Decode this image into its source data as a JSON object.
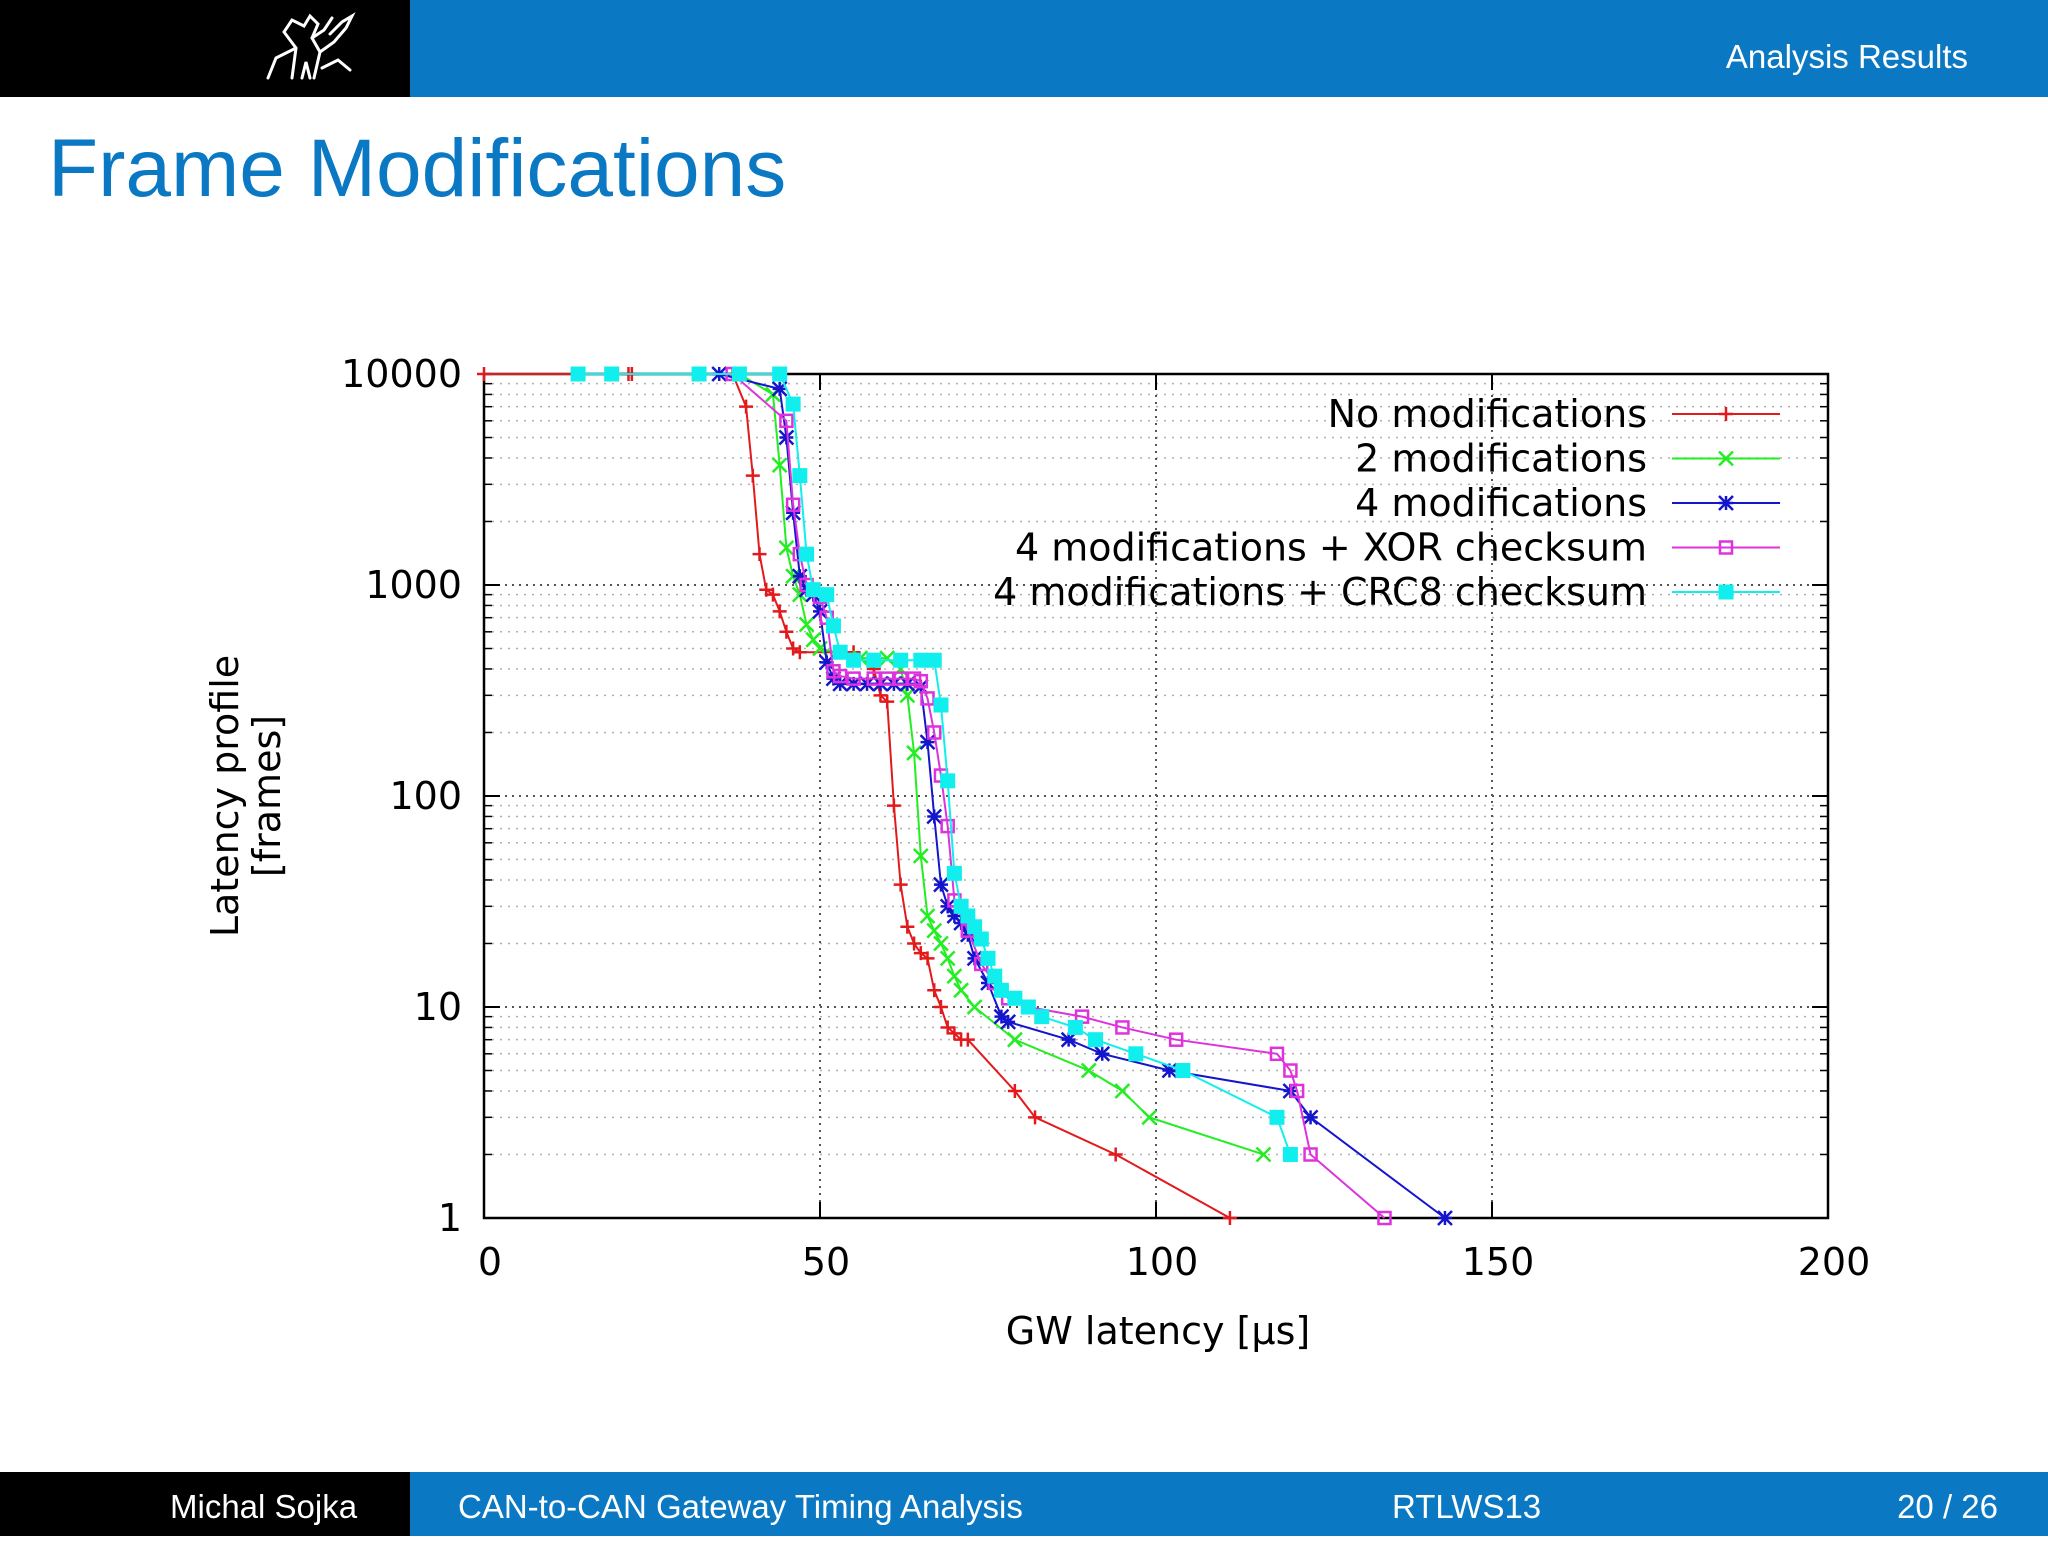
{
  "header": {
    "section": "Analysis Results"
  },
  "slide": {
    "title": "Frame Modifications"
  },
  "footer": {
    "author": "Michal Sojka",
    "talk": "CAN-to-CAN Gateway Timing Analysis",
    "conference": "RTLWS13",
    "page": "20 / 26"
  },
  "chart_data": {
    "type": "line",
    "xlabel": "GW latency [µs]",
    "ylabel": [
      "Latency profile",
      "[frames]"
    ],
    "xlim": [
      0,
      200
    ],
    "ylim": [
      1,
      10000
    ],
    "yscale": "log",
    "x_ticks": [
      0,
      50,
      100,
      150,
      200
    ],
    "y_ticks": [
      1,
      10,
      100,
      1000,
      10000
    ],
    "x_tick_labels": [
      "0",
      "50",
      "100",
      "150",
      "200"
    ],
    "y_tick_labels": [
      "1",
      "10",
      "100",
      "1000",
      "10000"
    ],
    "grid": true,
    "legend_position": "top-right",
    "series": [
      {
        "name": "No modifications",
        "color": "#e31a1c",
        "marker": "plus",
        "points": [
          [
            0,
            10000
          ],
          [
            21.5,
            10000
          ],
          [
            22,
            10000
          ],
          [
            37,
            10000
          ],
          [
            39,
            7000
          ],
          [
            40,
            3300
          ],
          [
            41,
            1400
          ],
          [
            42,
            950
          ],
          [
            43,
            900
          ],
          [
            44,
            750
          ],
          [
            45,
            600
          ],
          [
            46,
            500
          ],
          [
            47,
            480
          ],
          [
            55,
            480
          ],
          [
            58,
            400
          ],
          [
            59,
            300
          ],
          [
            60,
            280
          ],
          [
            61,
            90
          ],
          [
            62,
            38
          ],
          [
            63,
            24
          ],
          [
            64,
            20
          ],
          [
            65,
            18
          ],
          [
            66,
            17
          ],
          [
            67,
            12
          ],
          [
            68,
            10
          ],
          [
            69,
            8
          ],
          [
            70,
            7.5
          ],
          [
            71,
            7
          ],
          [
            72,
            7
          ],
          [
            79,
            4
          ],
          [
            82,
            3
          ],
          [
            94,
            2
          ],
          [
            111,
            1
          ]
        ]
      },
      {
        "name": "2 modifications",
        "color": "#22ee22",
        "marker": "x",
        "points": [
          [
            38,
            10000
          ],
          [
            43,
            8000
          ],
          [
            44,
            3700
          ],
          [
            45,
            1500
          ],
          [
            46,
            1100
          ],
          [
            47,
            900
          ],
          [
            48,
            650
          ],
          [
            49,
            550
          ],
          [
            50,
            500
          ],
          [
            56,
            450
          ],
          [
            60,
            450
          ],
          [
            62,
            400
          ],
          [
            63,
            300
          ],
          [
            64,
            160
          ],
          [
            65,
            52
          ],
          [
            66,
            27
          ],
          [
            67,
            23
          ],
          [
            68,
            20
          ],
          [
            69,
            17
          ],
          [
            70,
            14
          ],
          [
            71,
            12
          ],
          [
            73,
            10
          ],
          [
            79,
            7
          ],
          [
            90,
            5
          ],
          [
            95,
            4
          ],
          [
            99,
            3
          ],
          [
            116,
            2
          ]
        ]
      },
      {
        "name": "4 modifications",
        "color": "#1515cc",
        "marker": "star",
        "points": [
          [
            35,
            10000
          ],
          [
            44,
            8500
          ],
          [
            45,
            5000
          ],
          [
            46,
            2200
          ],
          [
            47,
            1100
          ],
          [
            48,
            950
          ],
          [
            49,
            900
          ],
          [
            50,
            750
          ],
          [
            51,
            430
          ],
          [
            52,
            360
          ],
          [
            53,
            340
          ],
          [
            55,
            340
          ],
          [
            57,
            340
          ],
          [
            59,
            340
          ],
          [
            61,
            340
          ],
          [
            63,
            340
          ],
          [
            65,
            330
          ],
          [
            66,
            180
          ],
          [
            67,
            80
          ],
          [
            68,
            38
          ],
          [
            69,
            30
          ],
          [
            70,
            27
          ],
          [
            71,
            25
          ],
          [
            72,
            22
          ],
          [
            73,
            17
          ],
          [
            75,
            13
          ],
          [
            77,
            9
          ],
          [
            78,
            8.5
          ],
          [
            87,
            7
          ],
          [
            92,
            6
          ],
          [
            102,
            5
          ],
          [
            120,
            4
          ],
          [
            123,
            3
          ],
          [
            143,
            1
          ]
        ]
      },
      {
        "name": "4 modifications + XOR checksum",
        "color": "#dd33dd",
        "marker": "open-square",
        "points": [
          [
            37,
            10000
          ],
          [
            45,
            6000
          ],
          [
            46,
            2400
          ],
          [
            47,
            1400
          ],
          [
            48,
            1000
          ],
          [
            49,
            950
          ],
          [
            50,
            880
          ],
          [
            51,
            700
          ],
          [
            52,
            390
          ],
          [
            53,
            370
          ],
          [
            55,
            360
          ],
          [
            58,
            360
          ],
          [
            60,
            360
          ],
          [
            62,
            360
          ],
          [
            64,
            360
          ],
          [
            65,
            350
          ],
          [
            66,
            290
          ],
          [
            67,
            200
          ],
          [
            68,
            125
          ],
          [
            69,
            72
          ],
          [
            70,
            32
          ],
          [
            72,
            23
          ],
          [
            74,
            16
          ],
          [
            76,
            13
          ],
          [
            78,
            11
          ],
          [
            81,
            10
          ],
          [
            89,
            9
          ],
          [
            95,
            8
          ],
          [
            103,
            7
          ],
          [
            118,
            6
          ],
          [
            120,
            5
          ],
          [
            121,
            4
          ],
          [
            123,
            2
          ],
          [
            134,
            1
          ]
        ]
      },
      {
        "name": "4 modifications + CRC8 checksum",
        "color": "#11eeee",
        "marker": "filled-square",
        "points": [
          [
            14,
            10000
          ],
          [
            19,
            10000
          ],
          [
            32,
            10000
          ],
          [
            38,
            10000
          ],
          [
            44,
            10000
          ],
          [
            46,
            7200
          ],
          [
            47,
            3300
          ],
          [
            48,
            1400
          ],
          [
            49,
            950
          ],
          [
            51,
            900
          ],
          [
            52,
            640
          ],
          [
            53,
            480
          ],
          [
            55,
            440
          ],
          [
            58,
            440
          ],
          [
            62,
            440
          ],
          [
            65,
            440
          ],
          [
            67,
            440
          ],
          [
            68,
            270
          ],
          [
            69,
            118
          ],
          [
            70,
            43
          ],
          [
            71,
            30
          ],
          [
            72,
            27
          ],
          [
            73,
            24
          ],
          [
            74,
            21
          ],
          [
            75,
            17
          ],
          [
            76,
            14
          ],
          [
            77,
            12
          ],
          [
            79,
            11
          ],
          [
            81,
            10
          ],
          [
            83,
            9
          ],
          [
            88,
            8
          ],
          [
            91,
            7
          ],
          [
            97,
            6
          ],
          [
            104,
            5
          ],
          [
            118,
            3
          ],
          [
            120,
            2
          ]
        ]
      }
    ]
  }
}
